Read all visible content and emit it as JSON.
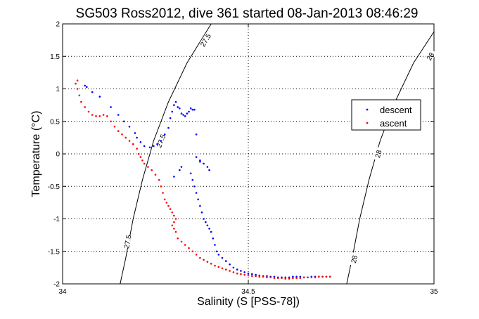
{
  "chart_data": {
    "type": "scatter",
    "title": "SG503 Ross2012, dive 361 started 08-Jan-2013 08:46:29",
    "xlabel": "Salinity (S [PSS-78])",
    "ylabel": "Temperature (°C)",
    "xlim": [
      34,
      35
    ],
    "ylim": [
      -2,
      2
    ],
    "x_ticks": [
      34,
      34.5,
      35
    ],
    "x_tick_labels": [
      "34",
      "34.5",
      "35"
    ],
    "y_ticks": [
      -2,
      -1.5,
      -1,
      -0.5,
      0,
      0.5,
      1,
      1.5,
      2
    ],
    "y_tick_labels": [
      "-2",
      "-1.5",
      "-1",
      "-0.5",
      "0",
      "0.5",
      "1",
      "1.5",
      "2"
    ],
    "grid": true,
    "grid_style": "dotted",
    "legend_position": "right",
    "contours": [
      {
        "label": "27.5",
        "points": [
          [
            34.155,
            -2.0
          ],
          [
            34.17,
            -1.6
          ],
          [
            34.19,
            -1.0
          ],
          [
            34.215,
            -0.4
          ],
          [
            34.245,
            0.2
          ],
          [
            34.285,
            0.8
          ],
          [
            34.335,
            1.4
          ],
          [
            34.4,
            2.0
          ]
        ],
        "label_positions": [
          [
            34.175,
            -1.35
          ],
          [
            34.265,
            0.2
          ],
          [
            34.385,
            1.75
          ]
        ]
      },
      {
        "label": "28",
        "points": [
          [
            34.765,
            -2.0
          ],
          [
            34.78,
            -1.6
          ],
          [
            34.8,
            -1.0
          ],
          [
            34.825,
            -0.4
          ],
          [
            34.855,
            0.2
          ],
          [
            34.895,
            0.8
          ],
          [
            34.945,
            1.4
          ],
          [
            35.0,
            1.88
          ]
        ],
        "label_positions": [
          [
            34.785,
            -1.62
          ],
          [
            34.85,
            0.0
          ],
          [
            34.99,
            1.5
          ]
        ]
      }
    ],
    "series": [
      {
        "name": "descent",
        "color": "#0000ff",
        "marker": "dot",
        "x": [
          34.06,
          34.065,
          34.08,
          34.1,
          34.13,
          34.15,
          34.165,
          34.18,
          34.195,
          34.2,
          34.21,
          34.22,
          34.235,
          34.245,
          34.255,
          34.265,
          34.275,
          34.285,
          34.29,
          34.295,
          34.3,
          34.305,
          34.31,
          34.315,
          34.32,
          34.325,
          34.33,
          34.335,
          34.34,
          34.345,
          34.35,
          34.355,
          34.36,
          34.345,
          34.35,
          34.355,
          34.36,
          34.365,
          34.37,
          34.375,
          34.38,
          34.385,
          34.39,
          34.395,
          34.4,
          34.405,
          34.41,
          34.415,
          34.42,
          34.43,
          34.44,
          34.45,
          34.46,
          34.47,
          34.48,
          34.49,
          34.5,
          34.51,
          34.52,
          34.53,
          34.54,
          34.55,
          34.56,
          34.57,
          34.58,
          34.59,
          34.6,
          34.61,
          34.62,
          34.63,
          34.64,
          34.65,
          34.66,
          34.67,
          34.68,
          34.69,
          34.7,
          34.71,
          34.72,
          34.36,
          34.37,
          34.38,
          34.39,
          34.395,
          34.37,
          34.32,
          34.315,
          34.3
        ],
        "y": [
          1.05,
          1.03,
          0.95,
          0.88,
          0.72,
          0.6,
          0.5,
          0.42,
          0.32,
          0.25,
          0.18,
          0.12,
          0.1,
          0.12,
          0.15,
          0.2,
          0.3,
          0.4,
          0.55,
          0.65,
          0.75,
          0.8,
          0.72,
          0.7,
          0.62,
          0.6,
          0.58,
          0.62,
          0.65,
          0.7,
          0.68,
          0.68,
          0.3,
          -0.3,
          -0.4,
          -0.5,
          -0.6,
          -0.7,
          -0.8,
          -0.9,
          -1.0,
          -1.05,
          -1.1,
          -1.15,
          -1.2,
          -1.3,
          -1.4,
          -1.5,
          -1.55,
          -1.6,
          -1.65,
          -1.7,
          -1.75,
          -1.78,
          -1.8,
          -1.82,
          -1.84,
          -1.85,
          -1.86,
          -1.87,
          -1.88,
          -1.88,
          -1.89,
          -1.89,
          -1.9,
          -1.9,
          -1.9,
          -1.9,
          -1.89,
          -1.89,
          -1.89,
          -1.9,
          -1.9,
          -1.89,
          -1.89,
          -1.89,
          -1.89,
          -1.89,
          -1.89,
          -0.05,
          -0.1,
          -0.15,
          -0.2,
          -0.25,
          -0.12,
          -0.2,
          -0.25,
          -0.35
        ]
      },
      {
        "name": "ascent",
        "color": "#ff0000",
        "marker": "dot",
        "x": [
          34.04,
          34.035,
          34.04,
          34.045,
          34.05,
          34.06,
          34.07,
          34.08,
          34.09,
          34.1,
          34.11,
          34.12,
          34.13,
          34.14,
          34.15,
          34.16,
          34.17,
          34.18,
          34.19,
          34.2,
          34.205,
          34.21,
          34.215,
          34.22,
          34.23,
          34.24,
          34.25,
          34.26,
          34.265,
          34.27,
          34.275,
          34.28,
          34.285,
          34.29,
          34.295,
          34.3,
          34.305,
          34.3,
          34.295,
          34.3,
          34.305,
          34.31,
          34.32,
          34.33,
          34.34,
          34.35,
          34.36,
          34.37,
          34.38,
          34.39,
          34.4,
          34.41,
          34.42,
          34.43,
          34.44,
          34.45,
          34.46,
          34.47,
          34.48,
          34.49,
          34.5,
          34.51,
          34.52,
          34.53,
          34.54,
          34.55,
          34.56,
          34.57,
          34.58,
          34.59,
          34.6,
          34.61,
          34.62,
          34.63,
          34.64,
          34.65,
          34.66,
          34.67,
          34.68,
          34.69,
          34.7,
          34.71,
          34.72
        ],
        "y": [
          1.13,
          1.08,
          1.0,
          0.9,
          0.8,
          0.72,
          0.65,
          0.6,
          0.58,
          0.58,
          0.6,
          0.58,
          0.5,
          0.42,
          0.35,
          0.3,
          0.25,
          0.2,
          0.15,
          0.08,
          0.0,
          -0.05,
          -0.1,
          -0.15,
          -0.2,
          -0.25,
          -0.32,
          -0.4,
          -0.5,
          -0.6,
          -0.7,
          -0.75,
          -0.8,
          -0.85,
          -0.9,
          -0.95,
          -1.0,
          -1.05,
          -1.1,
          -1.15,
          -1.2,
          -1.3,
          -1.35,
          -1.4,
          -1.45,
          -1.5,
          -1.55,
          -1.6,
          -1.63,
          -1.66,
          -1.69,
          -1.72,
          -1.74,
          -1.76,
          -1.78,
          -1.8,
          -1.82,
          -1.84,
          -1.85,
          -1.86,
          -1.87,
          -1.88,
          -1.88,
          -1.89,
          -1.89,
          -1.9,
          -1.9,
          -1.91,
          -1.91,
          -1.91,
          -1.92,
          -1.92,
          -1.91,
          -1.91,
          -1.91,
          -1.9,
          -1.9,
          -1.9,
          -1.9,
          -1.89,
          -1.89,
          -1.89,
          -1.89
        ]
      }
    ]
  }
}
